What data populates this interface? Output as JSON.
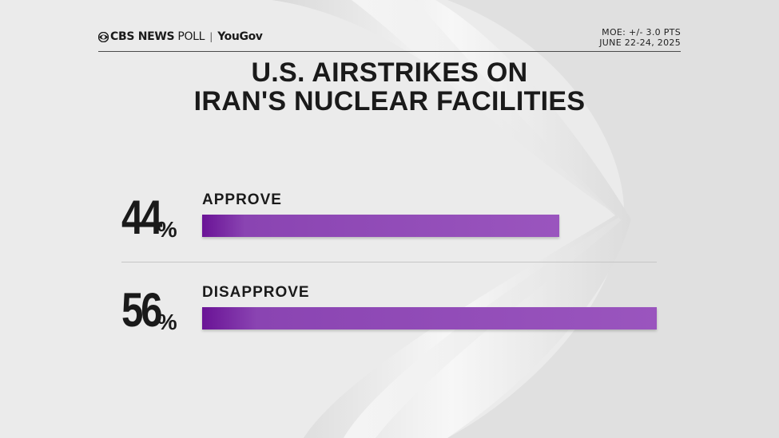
{
  "header": {
    "brand_cbs": "CBS NEWS",
    "brand_poll": "POLL",
    "brand_separator": "|",
    "brand_partner": "YouGov",
    "moe": "MOE: +/- 3.0 PTS",
    "dates": "JUNE 22-24, 2025"
  },
  "chart_data": {
    "type": "bar",
    "title": "U.S. AIRSTRIKES ON IRAN'S NUCLEAR FACILITIES",
    "title_lines": [
      "U.S. AIRSTRIKES ON",
      "IRAN'S NUCLEAR FACILITIES"
    ],
    "categories": [
      "APPROVE",
      "DISAPPROVE"
    ],
    "values": [
      44,
      56
    ],
    "value_labels": [
      "44",
      "56"
    ],
    "unit": "%",
    "orientation": "horizontal",
    "bar_color": "#9a55be",
    "bar_color_start": "#6a1396"
  }
}
